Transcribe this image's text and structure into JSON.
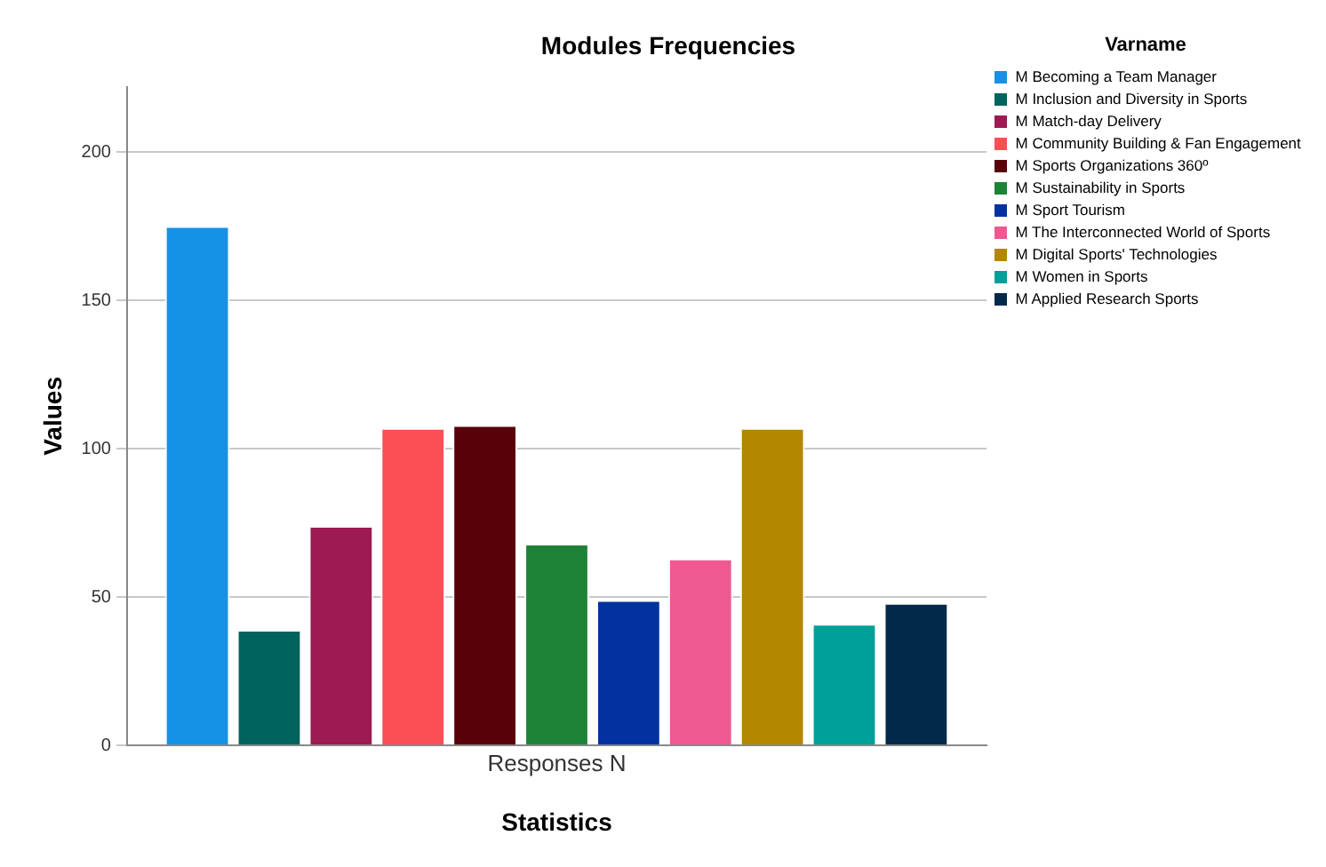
{
  "chart_data": {
    "type": "bar",
    "title": "Modules Frequencies",
    "xlabel": "Statistics",
    "ylabel": "Values",
    "legend_title": "Varname",
    "categories": [
      "Responses N"
    ],
    "series": [
      {
        "name": "M Becoming a Team Manager",
        "color": "#1591e6",
        "values": [
          175
        ]
      },
      {
        "name": "M Inclusion and Diversity in Sports",
        "color": "#01635e",
        "values": [
          39
        ]
      },
      {
        "name": "M Match-day Delivery",
        "color": "#9e1a52",
        "values": [
          74
        ]
      },
      {
        "name": "M Community Building & Fan Engagement",
        "color": "#fb4e55",
        "values": [
          107
        ]
      },
      {
        "name": "M Sports Organizations 360º",
        "color": "#590109",
        "values": [
          108
        ]
      },
      {
        "name": "M Sustainability in Sports",
        "color": "#1e8337",
        "values": [
          68
        ]
      },
      {
        "name": "M Sport Tourism",
        "color": "#0132a0",
        "values": [
          49
        ]
      },
      {
        "name": "M The Interconnected World of Sports",
        "color": "#ef5992",
        "values": [
          63
        ]
      },
      {
        "name": "M Digital Sports' Technologies",
        "color": "#b38700",
        "values": [
          107
        ]
      },
      {
        "name": "M Women in Sports",
        "color": "#00a09a",
        "values": [
          41
        ]
      },
      {
        "name": "M Applied Research Sports",
        "color": "#012a4a",
        "values": [
          48
        ]
      }
    ],
    "ylim": [
      0,
      222
    ],
    "yticks": [
      0,
      50,
      100,
      150,
      200
    ],
    "grid": "y",
    "legend": "top right"
  }
}
